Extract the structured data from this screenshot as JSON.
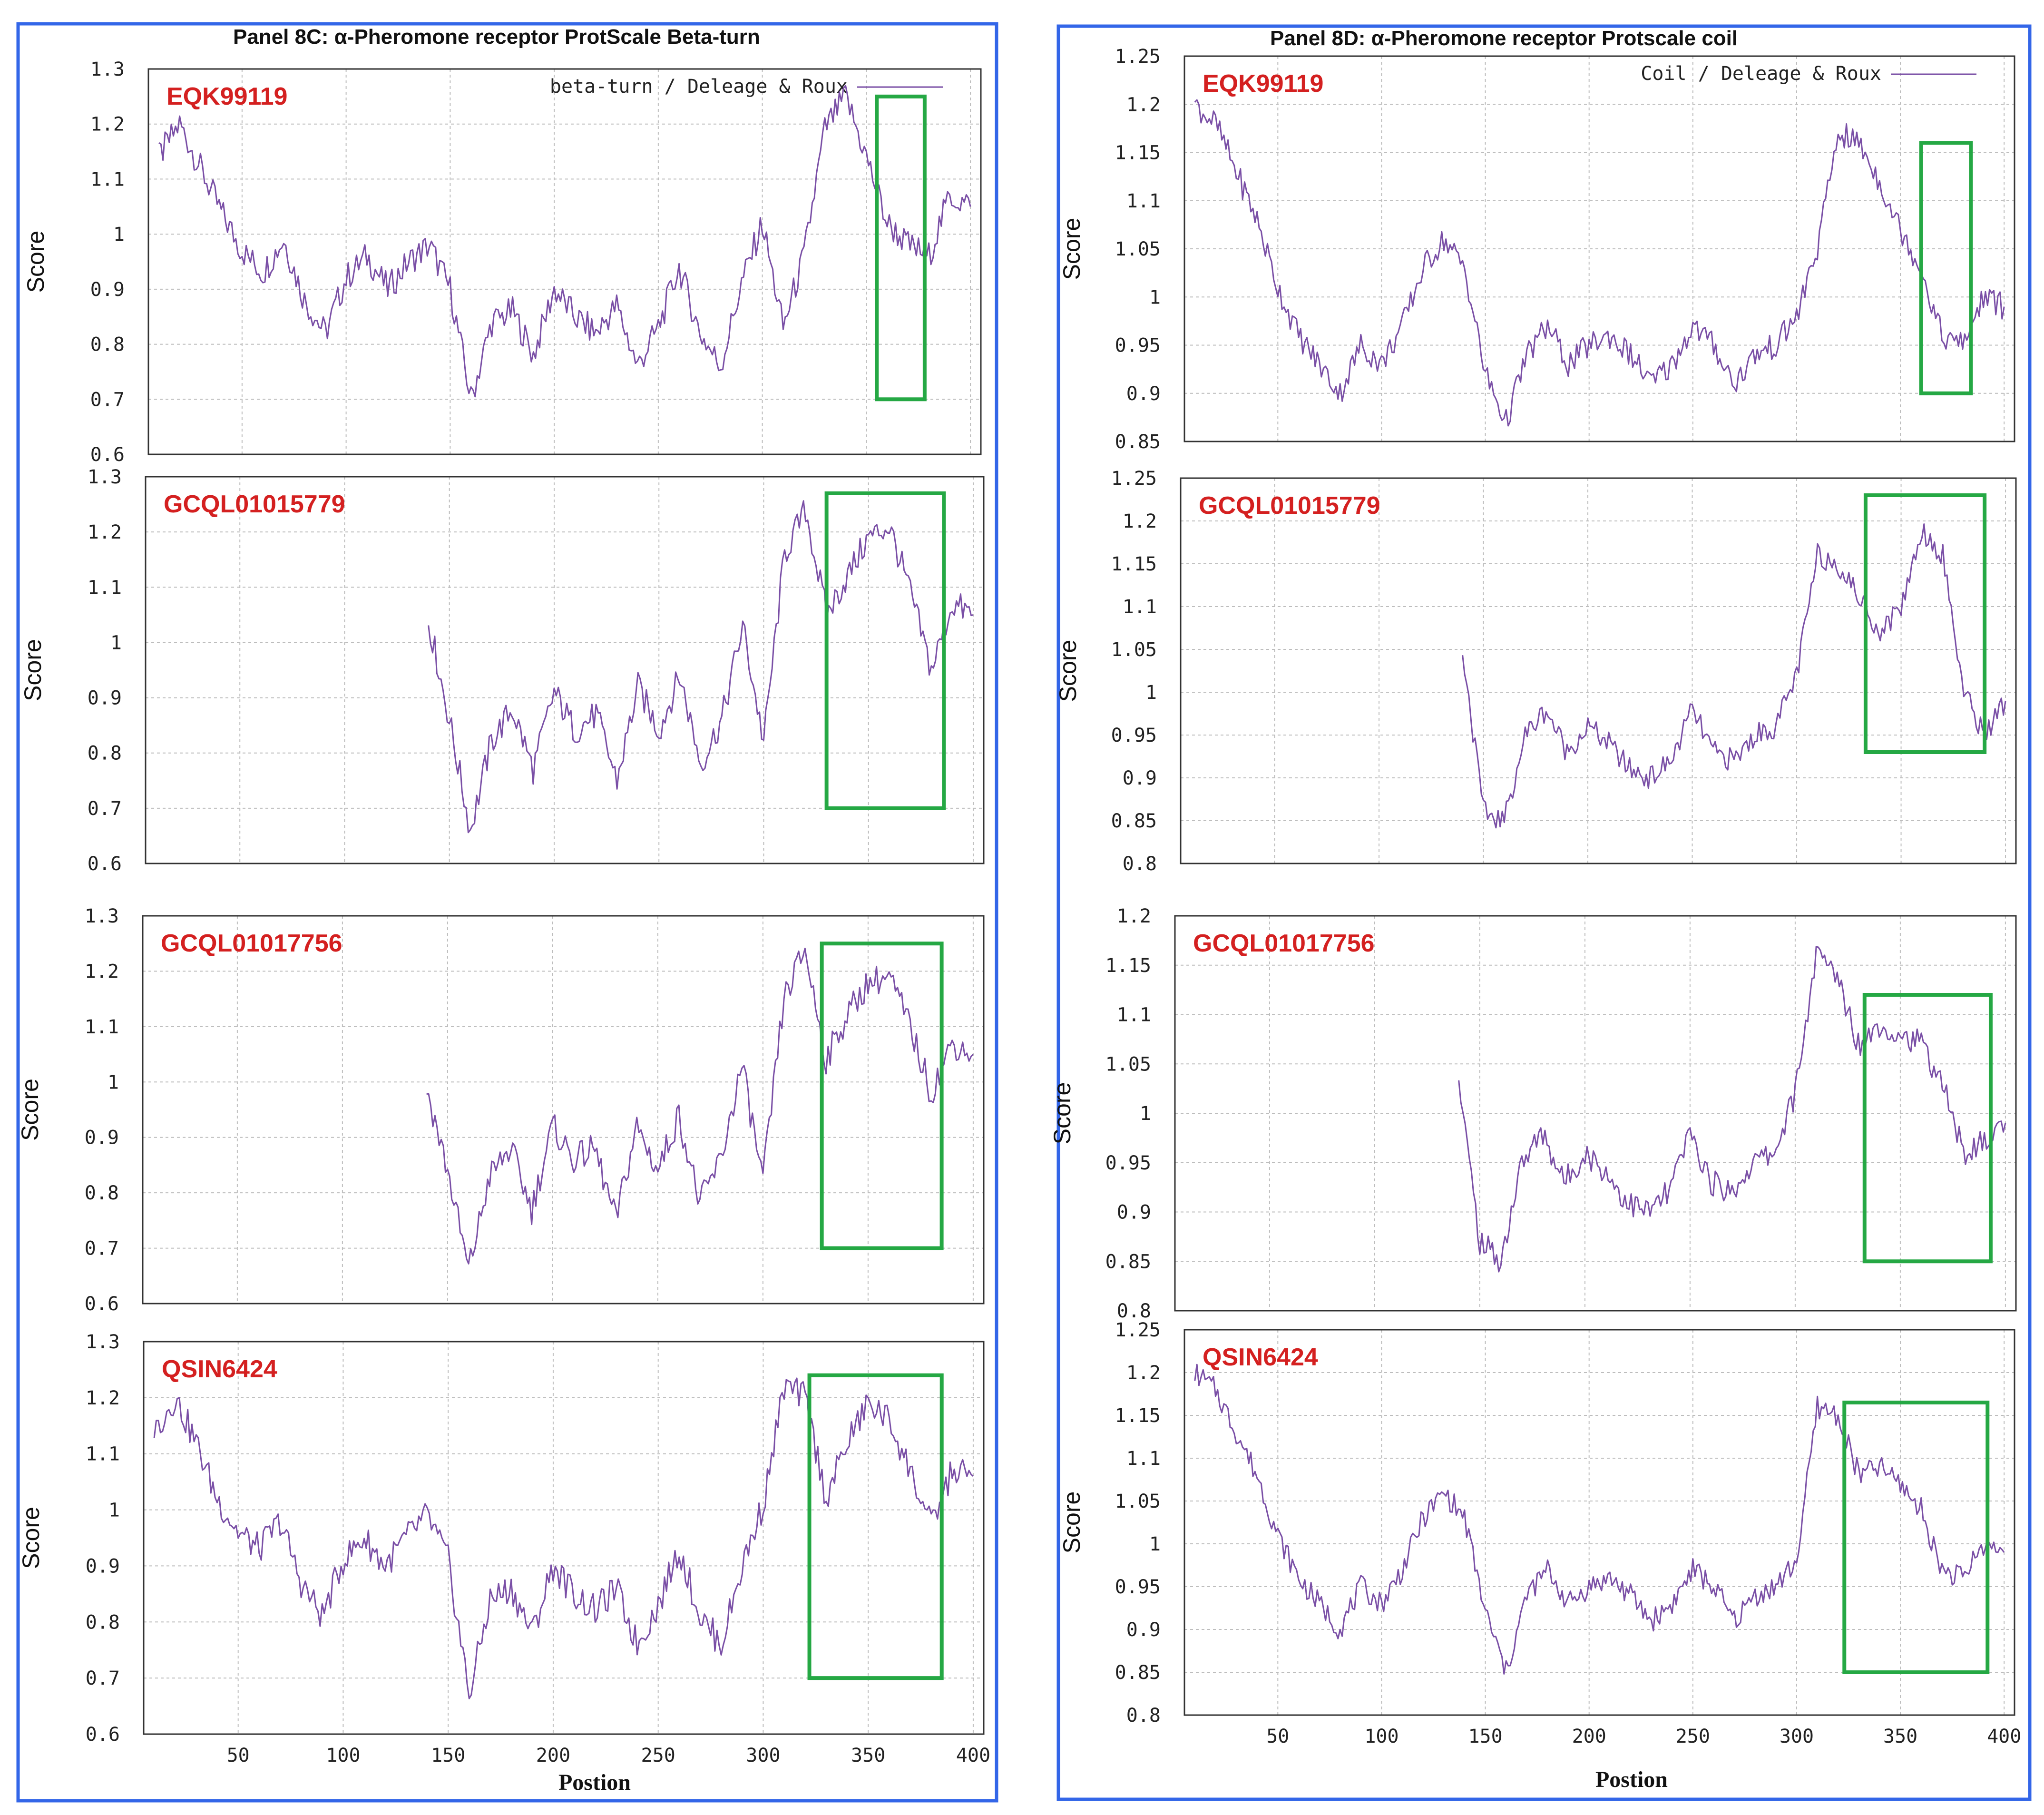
{
  "colors": {
    "frame": "#3366e8",
    "line": "#7a4fa6",
    "highlight": "#25a844",
    "label": "#d42020"
  },
  "panels": [
    {
      "title": "Panel 8C:  α-Pheromone receptor ProtScale Beta-turn",
      "legend": "beta-turn / Deleage & Roux",
      "ylabel": "Score",
      "xlabel": "Postion",
      "x_ticks": [
        "50",
        "100",
        "150",
        "200",
        "250",
        "300",
        "350",
        "400"
      ],
      "plots": [
        {
          "sequence": "EQK99119",
          "y_ticks": [
            "1.3",
            "1.2",
            "1.1",
            "1",
            "0.9",
            "0.8",
            "0.7",
            "0.6"
          ]
        },
        {
          "sequence": "GCQL01015779",
          "y_ticks": [
            "1.3",
            "1.2",
            "1.1",
            "1",
            "0.9",
            "0.8",
            "0.7",
            "0.6"
          ]
        },
        {
          "sequence": "GCQL01017756",
          "y_ticks": [
            "1.3",
            "1.2",
            "1.1",
            "1",
            "0.9",
            "0.8",
            "0.7",
            "0.6"
          ]
        },
        {
          "sequence": "QSIN6424",
          "y_ticks": [
            "1.3",
            "1.2",
            "1.1",
            "1",
            "0.9",
            "0.8",
            "0.7",
            "0.6"
          ]
        }
      ]
    },
    {
      "title": "Panel 8D:  α-Pheromone receptor Protscale coil",
      "legend": "Coil / Deleage & Roux",
      "ylabel": "Score",
      "xlabel": "Postion",
      "x_ticks": [
        "50",
        "100",
        "150",
        "200",
        "250",
        "300",
        "350",
        "400"
      ],
      "plots": [
        {
          "sequence": "EQK99119",
          "y_ticks": [
            "1.25",
            "1.2",
            "1.15",
            "1.1",
            "1.05",
            "1",
            "0.95",
            "0.9",
            "0.85"
          ]
        },
        {
          "sequence": "GCQL01015779",
          "y_ticks": [
            "1.25",
            "1.2",
            "1.15",
            "1.1",
            "1.05",
            "1",
            "0.95",
            "0.9",
            "0.85",
            "0.8"
          ]
        },
        {
          "sequence": "GCQL01017756",
          "y_ticks": [
            "1.2",
            "1.15",
            "1.1",
            "1.05",
            "1",
            "0.95",
            "0.9",
            "0.85",
            "0.8"
          ]
        },
        {
          "sequence": "QSIN6424",
          "y_ticks": [
            "1.25",
            "1.2",
            "1.15",
            "1.1",
            "1.05",
            "1",
            "0.95",
            "0.9",
            "0.85",
            "0.8"
          ]
        }
      ]
    }
  ],
  "chart_data": [
    {
      "type": "line",
      "sequence": "EQK99119",
      "xlim": [
        5,
        405
      ],
      "ylim": [
        0.6,
        1.3
      ],
      "x": [
        10,
        20,
        30,
        40,
        50,
        60,
        70,
        80,
        90,
        100,
        110,
        120,
        130,
        140,
        150,
        160,
        170,
        180,
        190,
        200,
        210,
        220,
        230,
        240,
        250,
        260,
        270,
        280,
        290,
        300,
        310,
        320,
        330,
        340,
        350,
        360,
        370,
        380,
        390,
        400
      ],
      "y": [
        1.14,
        1.2,
        1.12,
        1.04,
        0.97,
        0.93,
        0.99,
        0.88,
        0.82,
        0.92,
        0.96,
        0.9,
        0.95,
        0.98,
        0.9,
        0.7,
        0.84,
        0.86,
        0.78,
        0.9,
        0.85,
        0.82,
        0.87,
        0.76,
        0.83,
        0.94,
        0.82,
        0.76,
        0.91,
        1.02,
        0.83,
        0.96,
        1.19,
        1.25,
        1.14,
        1.02,
        0.98,
        0.96,
        1.07,
        1.05
      ],
      "highlight_x": [
        355,
        378
      ],
      "highlight_y": [
        0.7,
        1.25
      ]
    },
    {
      "type": "line",
      "sequence": "GCQL01015779",
      "xlim": [
        5,
        405
      ],
      "ylim": [
        0.6,
        1.3
      ],
      "x": [
        140,
        150,
        160,
        170,
        180,
        190,
        200,
        210,
        220,
        230,
        240,
        250,
        260,
        270,
        280,
        290,
        300,
        310,
        320,
        330,
        340,
        350,
        360,
        370,
        380,
        390,
        400
      ],
      "y": [
        1.04,
        0.86,
        0.66,
        0.82,
        0.88,
        0.77,
        0.91,
        0.84,
        0.87,
        0.75,
        0.92,
        0.84,
        0.94,
        0.78,
        0.86,
        1.03,
        0.82,
        1.16,
        1.24,
        1.05,
        1.12,
        1.19,
        1.21,
        1.09,
        0.95,
        1.07,
        1.05
      ],
      "highlight_x": [
        330,
        386
      ],
      "highlight_y": [
        0.7,
        1.27
      ]
    },
    {
      "type": "line",
      "sequence": "GCQL01017756",
      "xlim": [
        5,
        405
      ],
      "ylim": [
        0.6,
        1.3
      ],
      "x": [
        140,
        150,
        160,
        170,
        180,
        190,
        200,
        210,
        220,
        230,
        240,
        250,
        260,
        270,
        280,
        290,
        300,
        310,
        320,
        330,
        340,
        350,
        360,
        370,
        380,
        390,
        400
      ],
      "y": [
        0.99,
        0.84,
        0.66,
        0.83,
        0.88,
        0.77,
        0.92,
        0.86,
        0.88,
        0.75,
        0.92,
        0.84,
        0.94,
        0.78,
        0.86,
        1.03,
        0.82,
        1.15,
        1.24,
        1.04,
        1.12,
        1.18,
        1.19,
        1.1,
        0.98,
        1.07,
        1.05
      ],
      "highlight_x": [
        328,
        385
      ],
      "highlight_y": [
        0.7,
        1.25
      ]
    },
    {
      "type": "line",
      "sequence": "QSIN6424",
      "xlim": [
        5,
        405
      ],
      "ylim": [
        0.6,
        1.3
      ],
      "x": [
        10,
        20,
        30,
        40,
        50,
        60,
        70,
        80,
        90,
        100,
        110,
        120,
        130,
        140,
        150,
        160,
        170,
        180,
        190,
        200,
        210,
        220,
        230,
        240,
        250,
        260,
        270,
        280,
        290,
        300,
        310,
        320,
        330,
        340,
        350,
        360,
        370,
        380,
        390,
        400
      ],
      "y": [
        1.14,
        1.2,
        1.12,
        1.02,
        0.96,
        0.93,
        0.98,
        0.87,
        0.81,
        0.91,
        0.95,
        0.9,
        0.95,
        0.99,
        0.91,
        0.67,
        0.84,
        0.86,
        0.78,
        0.9,
        0.85,
        0.82,
        0.86,
        0.76,
        0.83,
        0.93,
        0.81,
        0.76,
        0.9,
        1.01,
        1.22,
        1.2,
        1.02,
        1.12,
        1.19,
        1.16,
        1.07,
        0.97,
        1.07,
        1.06
      ],
      "highlight_x": [
        322,
        385
      ],
      "highlight_y": [
        0.7,
        1.24
      ]
    },
    {
      "type": "line",
      "sequence": "EQK99119",
      "xlim": [
        5,
        405
      ],
      "ylim": [
        0.85,
        1.25
      ],
      "x": [
        10,
        20,
        30,
        40,
        50,
        60,
        70,
        80,
        90,
        100,
        110,
        120,
        130,
        140,
        150,
        160,
        170,
        180,
        190,
        200,
        210,
        220,
        230,
        240,
        250,
        260,
        270,
        280,
        290,
        300,
        310,
        320,
        330,
        340,
        350,
        360,
        370,
        380,
        390,
        400
      ],
      "y": [
        1.2,
        1.18,
        1.13,
        1.08,
        1.01,
        0.96,
        0.93,
        0.9,
        0.95,
        0.93,
        0.97,
        1.03,
        1.06,
        1.03,
        0.92,
        0.87,
        0.94,
        0.97,
        0.93,
        0.95,
        0.96,
        0.94,
        0.91,
        0.93,
        0.97,
        0.95,
        0.91,
        0.94,
        0.95,
        0.98,
        1.05,
        1.17,
        1.16,
        1.12,
        1.07,
        1.03,
        0.96,
        0.95,
        1.0,
        0.99
      ],
      "highlight_x": [
        360,
        384
      ],
      "highlight_y": [
        0.9,
        1.16
      ]
    },
    {
      "type": "line",
      "sequence": "GCQL01015779",
      "xlim": [
        5,
        405
      ],
      "ylim": [
        0.8,
        1.25
      ],
      "x": [
        140,
        150,
        160,
        170,
        180,
        190,
        200,
        210,
        220,
        230,
        240,
        250,
        260,
        270,
        280,
        290,
        300,
        310,
        320,
        330,
        340,
        350,
        360,
        370,
        380,
        390,
        400
      ],
      "y": [
        1.05,
        0.86,
        0.85,
        0.95,
        0.98,
        0.93,
        0.96,
        0.94,
        0.91,
        0.9,
        0.92,
        0.98,
        0.93,
        0.92,
        0.95,
        0.96,
        1.02,
        1.16,
        1.15,
        1.11,
        1.07,
        1.1,
        1.19,
        1.16,
        1.0,
        0.95,
        0.99
      ],
      "highlight_x": [
        333,
        390
      ],
      "highlight_y": [
        0.93,
        1.23
      ]
    },
    {
      "type": "line",
      "sequence": "GCQL01017756",
      "xlim": [
        5,
        405
      ],
      "ylim": [
        0.8,
        1.2
      ],
      "x": [
        140,
        150,
        160,
        170,
        180,
        190,
        200,
        210,
        220,
        230,
        240,
        250,
        260,
        270,
        280,
        290,
        300,
        310,
        320,
        330,
        340,
        350,
        360,
        370,
        380,
        390,
        400
      ],
      "y": [
        1.03,
        0.87,
        0.85,
        0.95,
        0.98,
        0.93,
        0.96,
        0.94,
        0.91,
        0.9,
        0.92,
        0.98,
        0.93,
        0.92,
        0.95,
        0.96,
        1.02,
        1.16,
        1.14,
        1.07,
        1.09,
        1.08,
        1.07,
        1.03,
        0.96,
        0.97,
        0.99
      ],
      "highlight_x": [
        333,
        393
      ],
      "highlight_y": [
        0.85,
        1.12
      ]
    },
    {
      "type": "line",
      "sequence": "QSIN6424",
      "xlim": [
        5,
        405
      ],
      "ylim": [
        0.8,
        1.25
      ],
      "x": [
        10,
        20,
        30,
        40,
        50,
        60,
        70,
        80,
        90,
        100,
        110,
        120,
        130,
        140,
        150,
        160,
        170,
        180,
        190,
        200,
        210,
        220,
        230,
        240,
        250,
        260,
        270,
        280,
        290,
        300,
        310,
        320,
        330,
        340,
        350,
        360,
        370,
        380,
        390,
        400
      ],
      "y": [
        1.2,
        1.18,
        1.13,
        1.08,
        1.01,
        0.96,
        0.93,
        0.9,
        0.95,
        0.93,
        0.97,
        1.03,
        1.06,
        1.03,
        0.92,
        0.85,
        0.94,
        0.97,
        0.93,
        0.95,
        0.96,
        0.94,
        0.91,
        0.93,
        0.97,
        0.95,
        0.91,
        0.94,
        0.95,
        0.98,
        1.16,
        1.15,
        1.08,
        1.09,
        1.07,
        1.04,
        0.97,
        0.96,
        1.0,
        0.99
      ],
      "highlight_x": [
        323,
        392
      ],
      "highlight_y": [
        0.85,
        1.165
      ]
    }
  ]
}
